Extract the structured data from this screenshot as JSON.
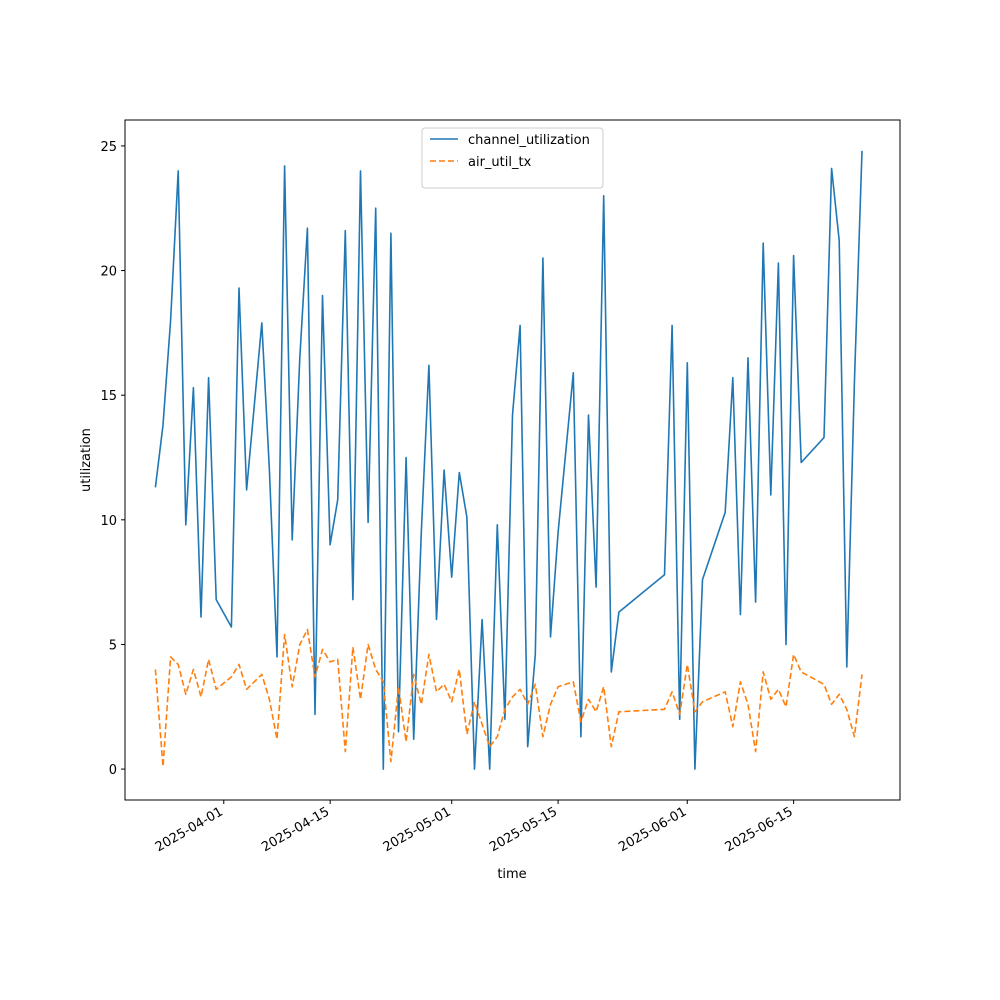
{
  "chart_data": {
    "type": "line",
    "xlabel": "time",
    "ylabel": "utilization",
    "x": [
      "2025-03-23",
      "2025-03-24",
      "2025-03-25",
      "2025-03-26",
      "2025-03-27",
      "2025-03-28",
      "2025-03-29",
      "2025-03-30",
      "2025-03-31",
      "2025-04-02",
      "2025-04-03",
      "2025-04-04",
      "2025-04-06",
      "2025-04-07",
      "2025-04-08",
      "2025-04-09",
      "2025-04-10",
      "2025-04-11",
      "2025-04-12",
      "2025-04-13",
      "2025-04-14",
      "2025-04-15",
      "2025-04-16",
      "2025-04-17",
      "2025-04-18",
      "2025-04-19",
      "2025-04-20",
      "2025-04-21",
      "2025-04-22",
      "2025-04-23",
      "2025-04-24",
      "2025-04-25",
      "2025-04-26",
      "2025-04-27",
      "2025-04-28",
      "2025-04-29",
      "2025-04-30",
      "2025-05-01",
      "2025-05-02",
      "2025-05-03",
      "2025-05-04",
      "2025-05-05",
      "2025-05-06",
      "2025-05-07",
      "2025-05-08",
      "2025-05-09",
      "2025-05-10",
      "2025-05-11",
      "2025-05-12",
      "2025-05-13",
      "2025-05-14",
      "2025-05-15",
      "2025-05-17",
      "2025-05-18",
      "2025-05-19",
      "2025-05-20",
      "2025-05-21",
      "2025-05-22",
      "2025-05-23",
      "2025-05-29",
      "2025-05-30",
      "2025-05-31",
      "2025-06-01",
      "2025-06-02",
      "2025-06-03",
      "2025-06-06",
      "2025-06-07",
      "2025-06-08",
      "2025-06-09",
      "2025-06-10",
      "2025-06-11",
      "2025-06-12",
      "2025-06-13",
      "2025-06-14",
      "2025-06-15",
      "2025-06-16",
      "2025-06-19",
      "2025-06-20",
      "2025-06-21",
      "2025-06-22",
      "2025-06-23",
      "2025-06-24"
    ],
    "series": [
      {
        "name": "channel_utilization",
        "color": "#1f77b4",
        "linestyle": "solid",
        "values": [
          11.3,
          13.8,
          18.0,
          24.0,
          9.8,
          15.3,
          6.1,
          15.7,
          6.8,
          5.7,
          19.3,
          11.2,
          17.9,
          12.0,
          4.5,
          24.2,
          9.2,
          16.5,
          21.7,
          2.2,
          19.0,
          9.0,
          10.8,
          21.6,
          6.8,
          24.0,
          9.9,
          22.5,
          0.0,
          21.5,
          1.5,
          12.5,
          1.2,
          9.5,
          16.2,
          6.0,
          12.0,
          7.7,
          11.9,
          10.1,
          0.0,
          6.0,
          0.0,
          9.8,
          2.0,
          14.2,
          17.8,
          0.9,
          4.6,
          20.5,
          5.3,
          9.5,
          15.9,
          1.3,
          14.2,
          7.3,
          23.0,
          3.9,
          6.3,
          7.8,
          17.8,
          2.0,
          16.3,
          0.0,
          7.6,
          10.3,
          15.7,
          6.2,
          16.5,
          6.7,
          21.1,
          11.0,
          20.3,
          5.0,
          20.6,
          12.3,
          13.3,
          24.1,
          21.2,
          4.1,
          15.5,
          24.8
        ]
      },
      {
        "name": "air_util_tx",
        "color": "#ff7f0e",
        "linestyle": "dashed",
        "values": [
          4.0,
          0.1,
          4.5,
          4.2,
          3.0,
          4.0,
          2.9,
          4.4,
          3.2,
          3.7,
          4.2,
          3.2,
          3.8,
          2.8,
          1.2,
          5.4,
          3.3,
          5.0,
          5.6,
          3.7,
          4.8,
          4.3,
          4.4,
          0.7,
          4.9,
          2.8,
          5.0,
          4.0,
          3.5,
          0.3,
          3.3,
          1.1,
          3.8,
          2.6,
          4.6,
          3.1,
          3.4,
          2.7,
          4.0,
          1.4,
          2.7,
          1.8,
          0.9,
          1.3,
          2.4,
          2.9,
          3.2,
          2.6,
          3.4,
          1.3,
          2.6,
          3.3,
          3.5,
          1.9,
          2.8,
          2.3,
          3.3,
          0.9,
          2.3,
          2.4,
          3.1,
          2.2,
          4.2,
          2.3,
          2.7,
          3.1,
          1.7,
          3.5,
          2.6,
          0.7,
          3.9,
          2.8,
          3.2,
          2.5,
          4.6,
          3.9,
          3.4,
          2.6,
          3.0,
          2.4,
          1.3,
          3.8
        ]
      }
    ],
    "xlim": [
      "2025-03-19",
      "2025-06-29"
    ],
    "xticks": [
      "2025-04-01",
      "2025-04-15",
      "2025-05-01",
      "2025-05-15",
      "2025-06-01",
      "2025-06-15"
    ],
    "ylim": [
      -1.24,
      26.04
    ],
    "yticks": [
      0,
      5,
      10,
      15,
      20,
      25
    ],
    "legend": "upper center"
  }
}
